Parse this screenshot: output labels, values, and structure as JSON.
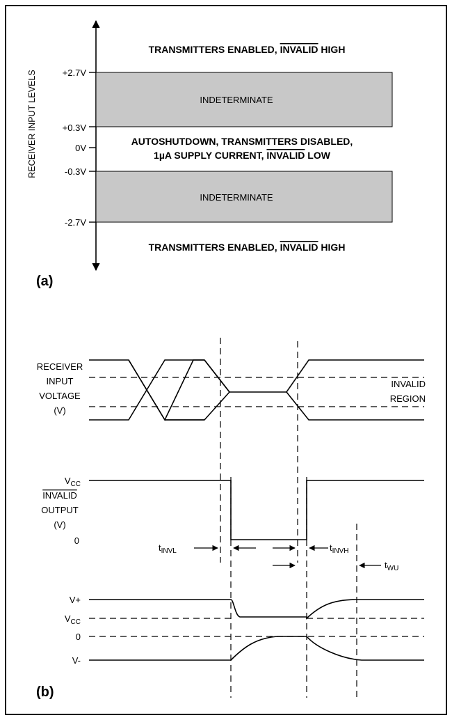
{
  "panel_a": {
    "axis_label": "RECEIVER INPUT LEVELS",
    "ticks": [
      {
        "label": "+2.7V"
      },
      {
        "label": "+0.3V"
      },
      {
        "label": "0V"
      },
      {
        "label": "-0.3V"
      },
      {
        "label": "-2.7V"
      }
    ],
    "region_top": {
      "text": "TRANSMITTERS ENABLED,",
      "bar_text": "INVALID",
      "suffix": " HIGH"
    },
    "band_upper": "INDETERMINATE",
    "middle_line1": "AUTOSHUTDOWN, TRANSMITTERS DISABLED,",
    "middle_line2_prefix": "1µA SUPPLY CURRENT,",
    "middle_line2_bar": "INVALID",
    "middle_line2_suffix": " LOW",
    "band_lower": "INDETERMINATE",
    "region_bottom": {
      "text": "TRANSMITTERS ENABLED,",
      "bar_text": "INVALID",
      "suffix": " HIGH"
    },
    "panel_label": "(a)",
    "band_color": "#c8c8c8"
  },
  "panel_b": {
    "receiver_label": [
      "RECEIVER",
      "INPUT",
      "VOLTAGE",
      "(V)"
    ],
    "invalid_region": [
      "INVALID",
      "REGION"
    ],
    "vcc_label_main": "V",
    "vcc_label_sub": "CC",
    "invalid_output_bar": "INVALID",
    "invalid_output_rest": [
      "OUTPUT",
      "(V)"
    ],
    "zero_label": "0",
    "tinvl_main": "t",
    "tinvl_sub": "INVL",
    "tinvh_main": "t",
    "tinvh_sub": "INVH",
    "twu_main": "t",
    "twu_sub": "WU",
    "vplus": "V+",
    "vcc2_main": "V",
    "vcc2_sub": "CC",
    "zero2": "0",
    "vminus": "V-",
    "panel_label": "(b)"
  }
}
